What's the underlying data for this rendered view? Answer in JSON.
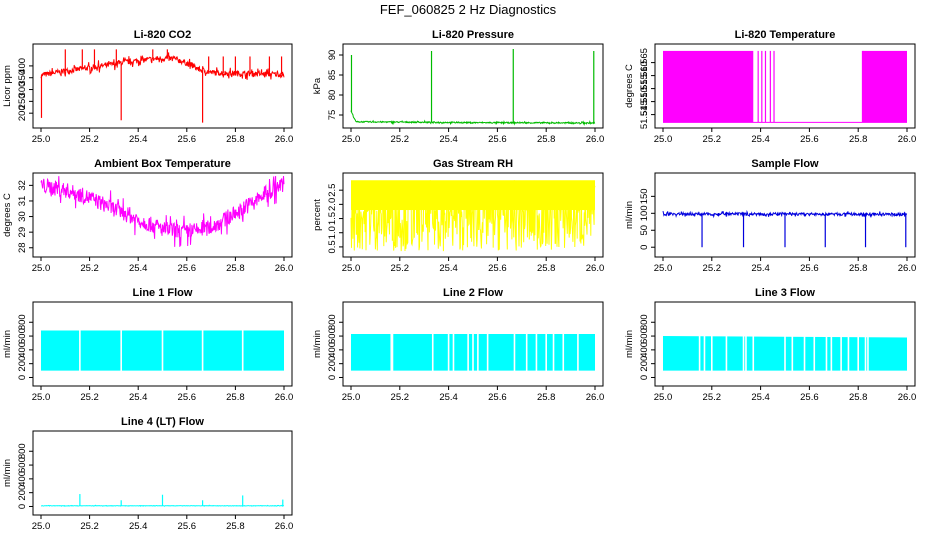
{
  "figure": {
    "title": "FEF_060825  2 Hz Diagnostics"
  },
  "chart_data": [
    {
      "type": "line",
      "title": "Li-820 CO2",
      "ylabel": "Licor ppm",
      "color": "#ff0000",
      "xlim": [
        25.0,
        26.0
      ],
      "ylim": [
        150,
        480
      ],
      "xticks": [
        "25.0",
        "25.2",
        "25.4",
        "25.6",
        "25.8",
        "26.0"
      ],
      "yticks": [
        [
          "200",
          200
        ],
        [
          "250",
          250
        ],
        [
          "300",
          300
        ],
        [
          "350",
          350
        ],
        [
          "400",
          400
        ]
      ],
      "series": [
        {
          "x": [
            25.0,
            25.05,
            25.1,
            25.15,
            25.2,
            25.25,
            25.3,
            25.35,
            25.4,
            25.45,
            25.5,
            25.55,
            25.6,
            25.65,
            25.7,
            25.75,
            25.8,
            25.85,
            25.9,
            25.95,
            26.0
          ],
          "y": [
            360,
            370,
            378,
            385,
            392,
            400,
            408,
            416,
            422,
            428,
            432,
            430,
            412,
            385,
            372,
            370,
            368,
            367,
            366,
            365,
            364
          ]
        }
      ],
      "noise": 12,
      "spikes": [
        [
          25.002,
          180
        ],
        [
          25.33,
          170
        ],
        [
          25.665,
          160
        ],
        [
          25.1,
          470
        ],
        [
          25.17,
          470
        ],
        [
          25.22,
          470
        ],
        [
          25.31,
          470
        ],
        [
          25.46,
          470
        ],
        [
          25.52,
          470
        ],
        [
          25.69,
          440
        ],
        [
          25.75,
          440
        ],
        [
          25.8,
          440
        ],
        [
          25.86,
          440
        ],
        [
          25.94,
          440
        ],
        [
          25.99,
          440
        ]
      ]
    },
    {
      "type": "line",
      "title": "Li-820 Pressure",
      "ylabel": "kPa",
      "color": "#00bb00",
      "xlim": [
        25.0,
        26.0
      ],
      "ylim": [
        72.5,
        92
      ],
      "xticks": [
        "25.0",
        "25.2",
        "25.4",
        "25.6",
        "25.8",
        "26.0"
      ],
      "yticks": [
        [
          "75",
          75
        ],
        [
          "80",
          80
        ],
        [
          "85",
          85
        ],
        [
          "90",
          90
        ]
      ],
      "series": [
        {
          "x": [
            25.0,
            25.02,
            25.5,
            26.0
          ],
          "y": [
            76,
            73.3,
            73.1,
            73.0
          ]
        }
      ],
      "noise": 0.15,
      "spikes": [
        [
          25.002,
          90
        ],
        [
          25.33,
          91
        ],
        [
          25.665,
          91.5
        ],
        [
          25.995,
          91
        ]
      ]
    },
    {
      "type": "line",
      "title": "Li-820 Temperature",
      "ylabel": "degrees C",
      "color": "#ff00ff",
      "xlim": [
        25.0,
        26.0
      ],
      "ylim": [
        51.541,
        51.571
      ],
      "xticks": [
        "25.0",
        "25.2",
        "25.4",
        "25.6",
        "25.8",
        "26.0"
      ],
      "yticks": [
        [
          "51.545",
          51.545
        ],
        [
          "51.550",
          51.55
        ],
        [
          "51.555",
          51.555
        ],
        [
          "51.560",
          51.56
        ],
        [
          "51.565",
          51.565
        ]
      ],
      "series": [
        {
          "x": [
            25.0,
            26.0
          ],
          "y": [
            51.542,
            51.542
          ]
        }
      ],
      "noise": 0,
      "bands": [
        [
          25.0,
          25.37,
          51.542,
          51.5695
        ],
        [
          25.815,
          26.0,
          51.542,
          51.5695
        ]
      ],
      "spikes": [
        [
          25.39,
          51.5695
        ],
        [
          25.405,
          51.5695
        ],
        [
          25.42,
          51.5695
        ],
        [
          25.44,
          51.5695
        ],
        [
          25.455,
          51.5695
        ],
        [
          25.82,
          51.5695
        ]
      ]
    },
    {
      "type": "line",
      "title": "Ambient Box Temperature",
      "ylabel": "degrees C",
      "color": "#ff00ff",
      "xlim": [
        25.0,
        26.0
      ],
      "ylim": [
        27.6,
        32.6
      ],
      "xticks": [
        "25.0",
        "25.2",
        "25.4",
        "25.6",
        "25.8",
        "26.0"
      ],
      "yticks": [
        [
          "28",
          28
        ],
        [
          "29",
          29
        ],
        [
          "30",
          30
        ],
        [
          "31",
          31
        ],
        [
          "32",
          32
        ]
      ],
      "series": [
        {
          "x": [
            25.0,
            25.1,
            25.2,
            25.3,
            25.4,
            25.5,
            25.6,
            25.7,
            25.8,
            25.9,
            26.0
          ],
          "y": [
            32.0,
            31.7,
            31.2,
            30.5,
            29.8,
            29.2,
            29.0,
            29.3,
            30.2,
            31.2,
            32.1
          ]
        }
      ],
      "noise": 0.5
    },
    {
      "type": "line",
      "title": "Gas Stream RH",
      "ylabel": "percent",
      "color": "#ffff00",
      "xlim": [
        25.0,
        26.0
      ],
      "ylim": [
        0.25,
        3.0
      ],
      "xticks": [
        "25.0",
        "25.2",
        "25.4",
        "25.6",
        "25.8",
        "26.0"
      ],
      "yticks": [
        [
          "0.5",
          0.5
        ],
        [
          "1.0",
          1.0
        ],
        [
          "1.5",
          1.5
        ],
        [
          "2.0",
          2.0
        ],
        [
          "2.5",
          2.5
        ]
      ],
      "series": [
        {
          "x": [
            25.0,
            26.0
          ],
          "y": [
            1.6,
            1.6
          ]
        }
      ],
      "noise": 0,
      "bands": [
        [
          25.0,
          26.0,
          1.8,
          2.85
        ]
      ],
      "range_noise": [
        0.35,
        2.85
      ]
    },
    {
      "type": "line",
      "title": "Sample Flow",
      "ylabel": "ml/min",
      "color": "#0000dd",
      "xlim": [
        25.0,
        26.0
      ],
      "ylim": [
        -20,
        210
      ],
      "xticks": [
        "25.0",
        "25.2",
        "25.4",
        "25.6",
        "25.8",
        "26.0"
      ],
      "yticks": [
        [
          "0",
          0
        ],
        [
          "50",
          50
        ],
        [
          "100",
          100
        ],
        [
          "150",
          150
        ]
      ],
      "series": [
        {
          "x": [
            25.0,
            26.0
          ],
          "y": [
            98,
            97
          ]
        }
      ],
      "noise": 4,
      "spikes": [
        [
          25.16,
          0
        ],
        [
          25.33,
          0
        ],
        [
          25.5,
          0
        ],
        [
          25.665,
          0
        ],
        [
          25.83,
          0
        ],
        [
          25.995,
          0
        ]
      ]
    },
    {
      "type": "area",
      "title": "Line 1 Flow",
      "ylabel": "ml/min",
      "color": "#00ffff",
      "xlim": [
        25.0,
        26.0
      ],
      "ylim": [
        -80,
        1050
      ],
      "xticks": [
        "25.0",
        "25.2",
        "25.4",
        "25.6",
        "25.8",
        "26.0"
      ],
      "yticks": [
        [
          "0",
          0
        ],
        [
          "200",
          200
        ],
        [
          "400",
          400
        ],
        [
          "600",
          600
        ],
        [
          "800",
          800
        ]
      ],
      "series": [
        {
          "x": [
            25.0,
            26.0
          ],
          "y": [
            680,
            680
          ]
        }
      ],
      "base": 100,
      "gaps": [
        25.16,
        25.33,
        25.5,
        25.665,
        25.83
      ]
    },
    {
      "type": "area",
      "title": "Line 2 Flow",
      "ylabel": "ml/min",
      "color": "#00ffff",
      "xlim": [
        25.0,
        26.0
      ],
      "ylim": [
        -80,
        1050
      ],
      "xticks": [
        "25.0",
        "25.2",
        "25.4",
        "25.6",
        "25.8",
        "26.0"
      ],
      "yticks": [
        [
          "0",
          0
        ],
        [
          "200",
          200
        ],
        [
          "400",
          400
        ],
        [
          "600",
          600
        ],
        [
          "800",
          800
        ]
      ],
      "series": [
        {
          "x": [
            25.0,
            26.0
          ],
          "y": [
            630,
            630
          ]
        }
      ],
      "base": 100,
      "gaps": [
        25.165,
        25.17,
        25.335,
        25.4,
        25.42,
        25.48,
        25.5,
        25.52,
        25.56,
        25.67,
        25.72,
        25.76,
        25.8,
        25.83,
        25.87,
        25.93
      ]
    },
    {
      "type": "area",
      "title": "Line 3 Flow",
      "ylabel": "ml/min",
      "color": "#00ffff",
      "xlim": [
        25.0,
        26.0
      ],
      "ylim": [
        -80,
        1050
      ],
      "xticks": [
        "25.0",
        "25.2",
        "25.4",
        "25.6",
        "25.8",
        "26.0"
      ],
      "yticks": [
        [
          "0",
          0
        ],
        [
          "200",
          200
        ],
        [
          "400",
          400
        ],
        [
          "600",
          600
        ],
        [
          "800",
          800
        ]
      ],
      "series": [
        {
          "x": [
            25.0,
            26.0
          ],
          "y": [
            600,
            580
          ]
        }
      ],
      "base": 100,
      "gaps": [
        25.15,
        25.17,
        25.2,
        25.26,
        25.33,
        25.34,
        25.37,
        25.5,
        25.53,
        25.58,
        25.62,
        25.67,
        25.69,
        25.73,
        25.76,
        25.8,
        25.83,
        25.84
      ]
    },
    {
      "type": "line",
      "title": "Line 4 (LT) Flow",
      "ylabel": "ml/min",
      "color": "#00ffff",
      "xlim": [
        25.0,
        26.0
      ],
      "ylim": [
        -80,
        1050
      ],
      "xticks": [
        "25.0",
        "25.2",
        "25.4",
        "25.6",
        "25.8",
        "26.0"
      ],
      "yticks": [
        [
          "0",
          0
        ],
        [
          "200",
          200
        ],
        [
          "400",
          400
        ],
        [
          "600",
          600
        ],
        [
          "800",
          800
        ]
      ],
      "series": [
        {
          "x": [
            25.0,
            26.0
          ],
          "y": [
            10,
            10
          ]
        }
      ],
      "noise": 3,
      "spikes": [
        [
          25.16,
          180
        ],
        [
          25.33,
          90
        ],
        [
          25.5,
          170
        ],
        [
          25.665,
          90
        ],
        [
          25.83,
          160
        ],
        [
          25.995,
          100
        ]
      ]
    }
  ]
}
